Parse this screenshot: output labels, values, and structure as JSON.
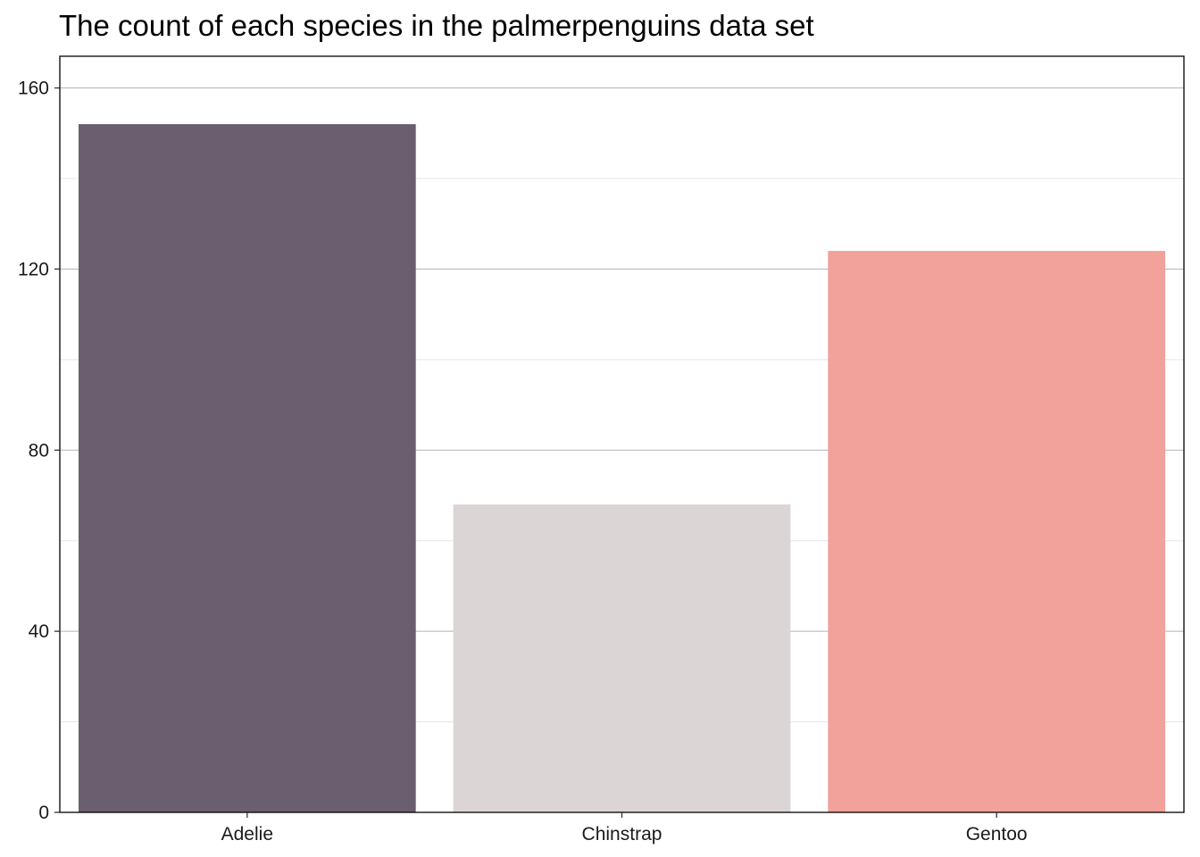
{
  "chart_data": {
    "type": "bar",
    "title": "The count of each species in the palmerpenguins data set",
    "xlabel": "",
    "ylabel": "",
    "categories": [
      "Adelie",
      "Chinstrap",
      "Gentoo"
    ],
    "values": [
      152,
      68,
      124
    ],
    "colors": [
      "#6b5e6e",
      "#dbd5d5",
      "#f2a19b"
    ],
    "ylim": [
      0,
      167
    ],
    "yticks": [
      0,
      40,
      80,
      120,
      160
    ],
    "yminor": [
      20,
      60,
      100,
      140
    ],
    "grid": true,
    "legend": "none"
  }
}
